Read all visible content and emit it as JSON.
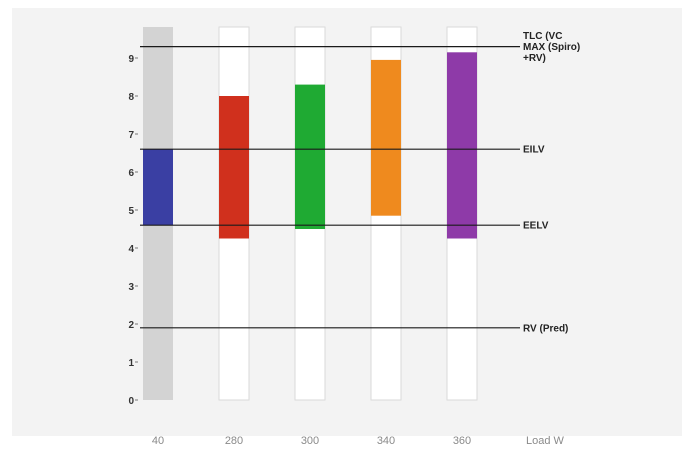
{
  "chart_data": {
    "type": "bar",
    "categories": [
      "40",
      "280",
      "300",
      "340",
      "360"
    ],
    "xlabel": "Load W",
    "ylabel": "",
    "title": "",
    "ylim": [
      0,
      9.6
    ],
    "yticks": [
      "0",
      "1",
      "2",
      "3",
      "4",
      "5",
      "6",
      "7",
      "8",
      "9"
    ],
    "grid": false,
    "legend": "none",
    "track_color": "#ffffff",
    "first_track_color": "#d3d3d3",
    "ranges": [
      {
        "category": "40",
        "low": 4.6,
        "high": 6.6,
        "color": "#3a3fa3"
      },
      {
        "category": "280",
        "low": 4.25,
        "high": 8.0,
        "color": "#d0301d"
      },
      {
        "category": "300",
        "low": 4.5,
        "high": 8.3,
        "color": "#1faa33"
      },
      {
        "category": "340",
        "low": 4.85,
        "high": 8.95,
        "color": "#ef8a1e"
      },
      {
        "category": "360",
        "low": 4.25,
        "high": 9.15,
        "color": "#8e3aa8"
      }
    ],
    "reference_lines": [
      {
        "label_lines": [
          "TLC (VC",
          "MAX (Spiro)",
          "+RV)"
        ],
        "value": 9.3
      },
      {
        "label_lines": [
          "EILV"
        ],
        "value": 6.6
      },
      {
        "label_lines": [
          "EELV"
        ],
        "value": 4.6
      },
      {
        "label_lines": [
          "RV (Pred)"
        ],
        "value": 1.9
      }
    ]
  }
}
